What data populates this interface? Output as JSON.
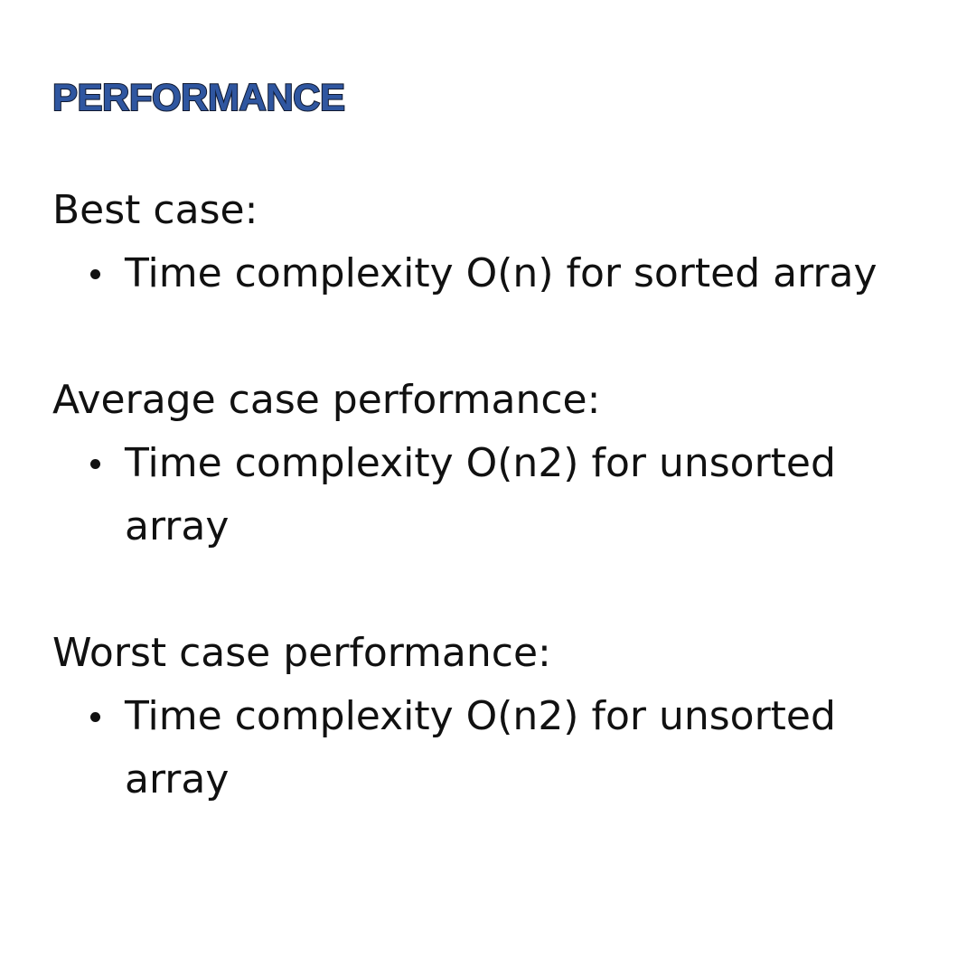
{
  "title": "PERFORMANCE",
  "colors": {
    "title_fill": "#2f56a0",
    "title_outline": "#10192f",
    "text": "#111111",
    "background": "#ffffff"
  },
  "sections": [
    {
      "heading": "Best case:",
      "bullets": [
        "Time complexity O(n) for sorted array"
      ]
    },
    {
      "heading": "Average case performance:",
      "bullets": [
        "Time complexity O(n2) for unsorted array"
      ]
    },
    {
      "heading": "Worst case performance:",
      "bullets": [
        "Time complexity O(n2) for unsorted array"
      ]
    }
  ]
}
